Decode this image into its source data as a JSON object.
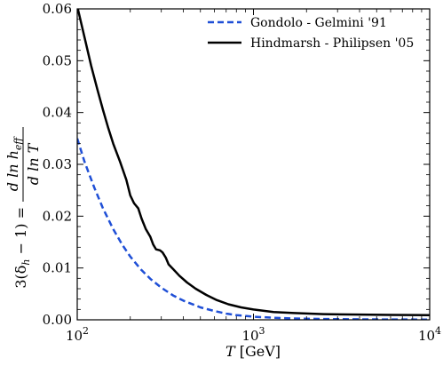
{
  "chart_data": {
    "type": "line",
    "xscale": "log",
    "xlim": [
      100,
      10000
    ],
    "ylim": [
      0,
      0.06
    ],
    "x_ticks": [
      {
        "value": 100,
        "base": "10",
        "exp": "2"
      },
      {
        "value": 1000,
        "base": "10",
        "exp": "3"
      },
      {
        "value": 10000,
        "base": "10",
        "exp": "4"
      }
    ],
    "y_ticks": [
      {
        "value": 0.0,
        "label": "0.00"
      },
      {
        "value": 0.01,
        "label": "0.01"
      },
      {
        "value": 0.02,
        "label": "0.02"
      },
      {
        "value": 0.03,
        "label": "0.03"
      },
      {
        "value": 0.04,
        "label": "0.04"
      },
      {
        "value": 0.05,
        "label": "0.05"
      },
      {
        "value": 0.06,
        "label": "0.06"
      }
    ],
    "xlabel": {
      "var": "T",
      "unit": "[GeV]"
    },
    "ylabel": {
      "left": "3(δ",
      "sub": "h",
      "right": " − 1) =",
      "num": "d ln h",
      "num_sub": "eff",
      "den": "d ln T"
    },
    "legend_position": "top-right",
    "series": [
      {
        "name": "Gondolo - Gelmini '91",
        "color": "#1f4fd6",
        "style": "dashed",
        "points": [
          [
            100,
            0.035
          ],
          [
            110,
            0.0305
          ],
          [
            125,
            0.0255
          ],
          [
            140,
            0.0215
          ],
          [
            160,
            0.0175
          ],
          [
            180,
            0.0145
          ],
          [
            200,
            0.0122
          ],
          [
            230,
            0.0097
          ],
          [
            260,
            0.0079
          ],
          [
            300,
            0.0062
          ],
          [
            350,
            0.0047
          ],
          [
            400,
            0.0037
          ],
          [
            500,
            0.0024
          ],
          [
            600,
            0.0017
          ],
          [
            700,
            0.0012
          ],
          [
            800,
            0.0009
          ],
          [
            1000,
            0.0006
          ],
          [
            1300,
            0.0004
          ],
          [
            1700,
            0.00025
          ],
          [
            2500,
            0.00015
          ],
          [
            4000,
            0.0001
          ],
          [
            6000,
            6e-05
          ],
          [
            10000,
            5e-05
          ]
        ]
      },
      {
        "name": "Hindmarsh - Philipsen '05",
        "color": "#000000",
        "style": "solid",
        "points": [
          [
            100,
            0.0605
          ],
          [
            110,
            0.0545
          ],
          [
            120,
            0.049
          ],
          [
            130,
            0.0445
          ],
          [
            140,
            0.0405
          ],
          [
            150,
            0.037
          ],
          [
            160,
            0.034
          ],
          [
            175,
            0.0305
          ],
          [
            190,
            0.027
          ],
          [
            200,
            0.024
          ],
          [
            210,
            0.0225
          ],
          [
            222,
            0.0215
          ],
          [
            232,
            0.0195
          ],
          [
            245,
            0.0175
          ],
          [
            260,
            0.016
          ],
          [
            270,
            0.0145
          ],
          [
            280,
            0.0136
          ],
          [
            295,
            0.0134
          ],
          [
            305,
            0.013
          ],
          [
            318,
            0.012
          ],
          [
            330,
            0.0107
          ],
          [
            350,
            0.0098
          ],
          [
            380,
            0.0085
          ],
          [
            420,
            0.0072
          ],
          [
            470,
            0.006
          ],
          [
            540,
            0.0048
          ],
          [
            620,
            0.0038
          ],
          [
            720,
            0.003
          ],
          [
            850,
            0.0024
          ],
          [
            1000,
            0.002
          ],
          [
            1300,
            0.0015
          ],
          [
            1700,
            0.0013
          ],
          [
            2500,
            0.0011
          ],
          [
            4000,
            0.001
          ],
          [
            6000,
            0.00095
          ],
          [
            10000,
            0.0009
          ]
        ]
      }
    ]
  }
}
